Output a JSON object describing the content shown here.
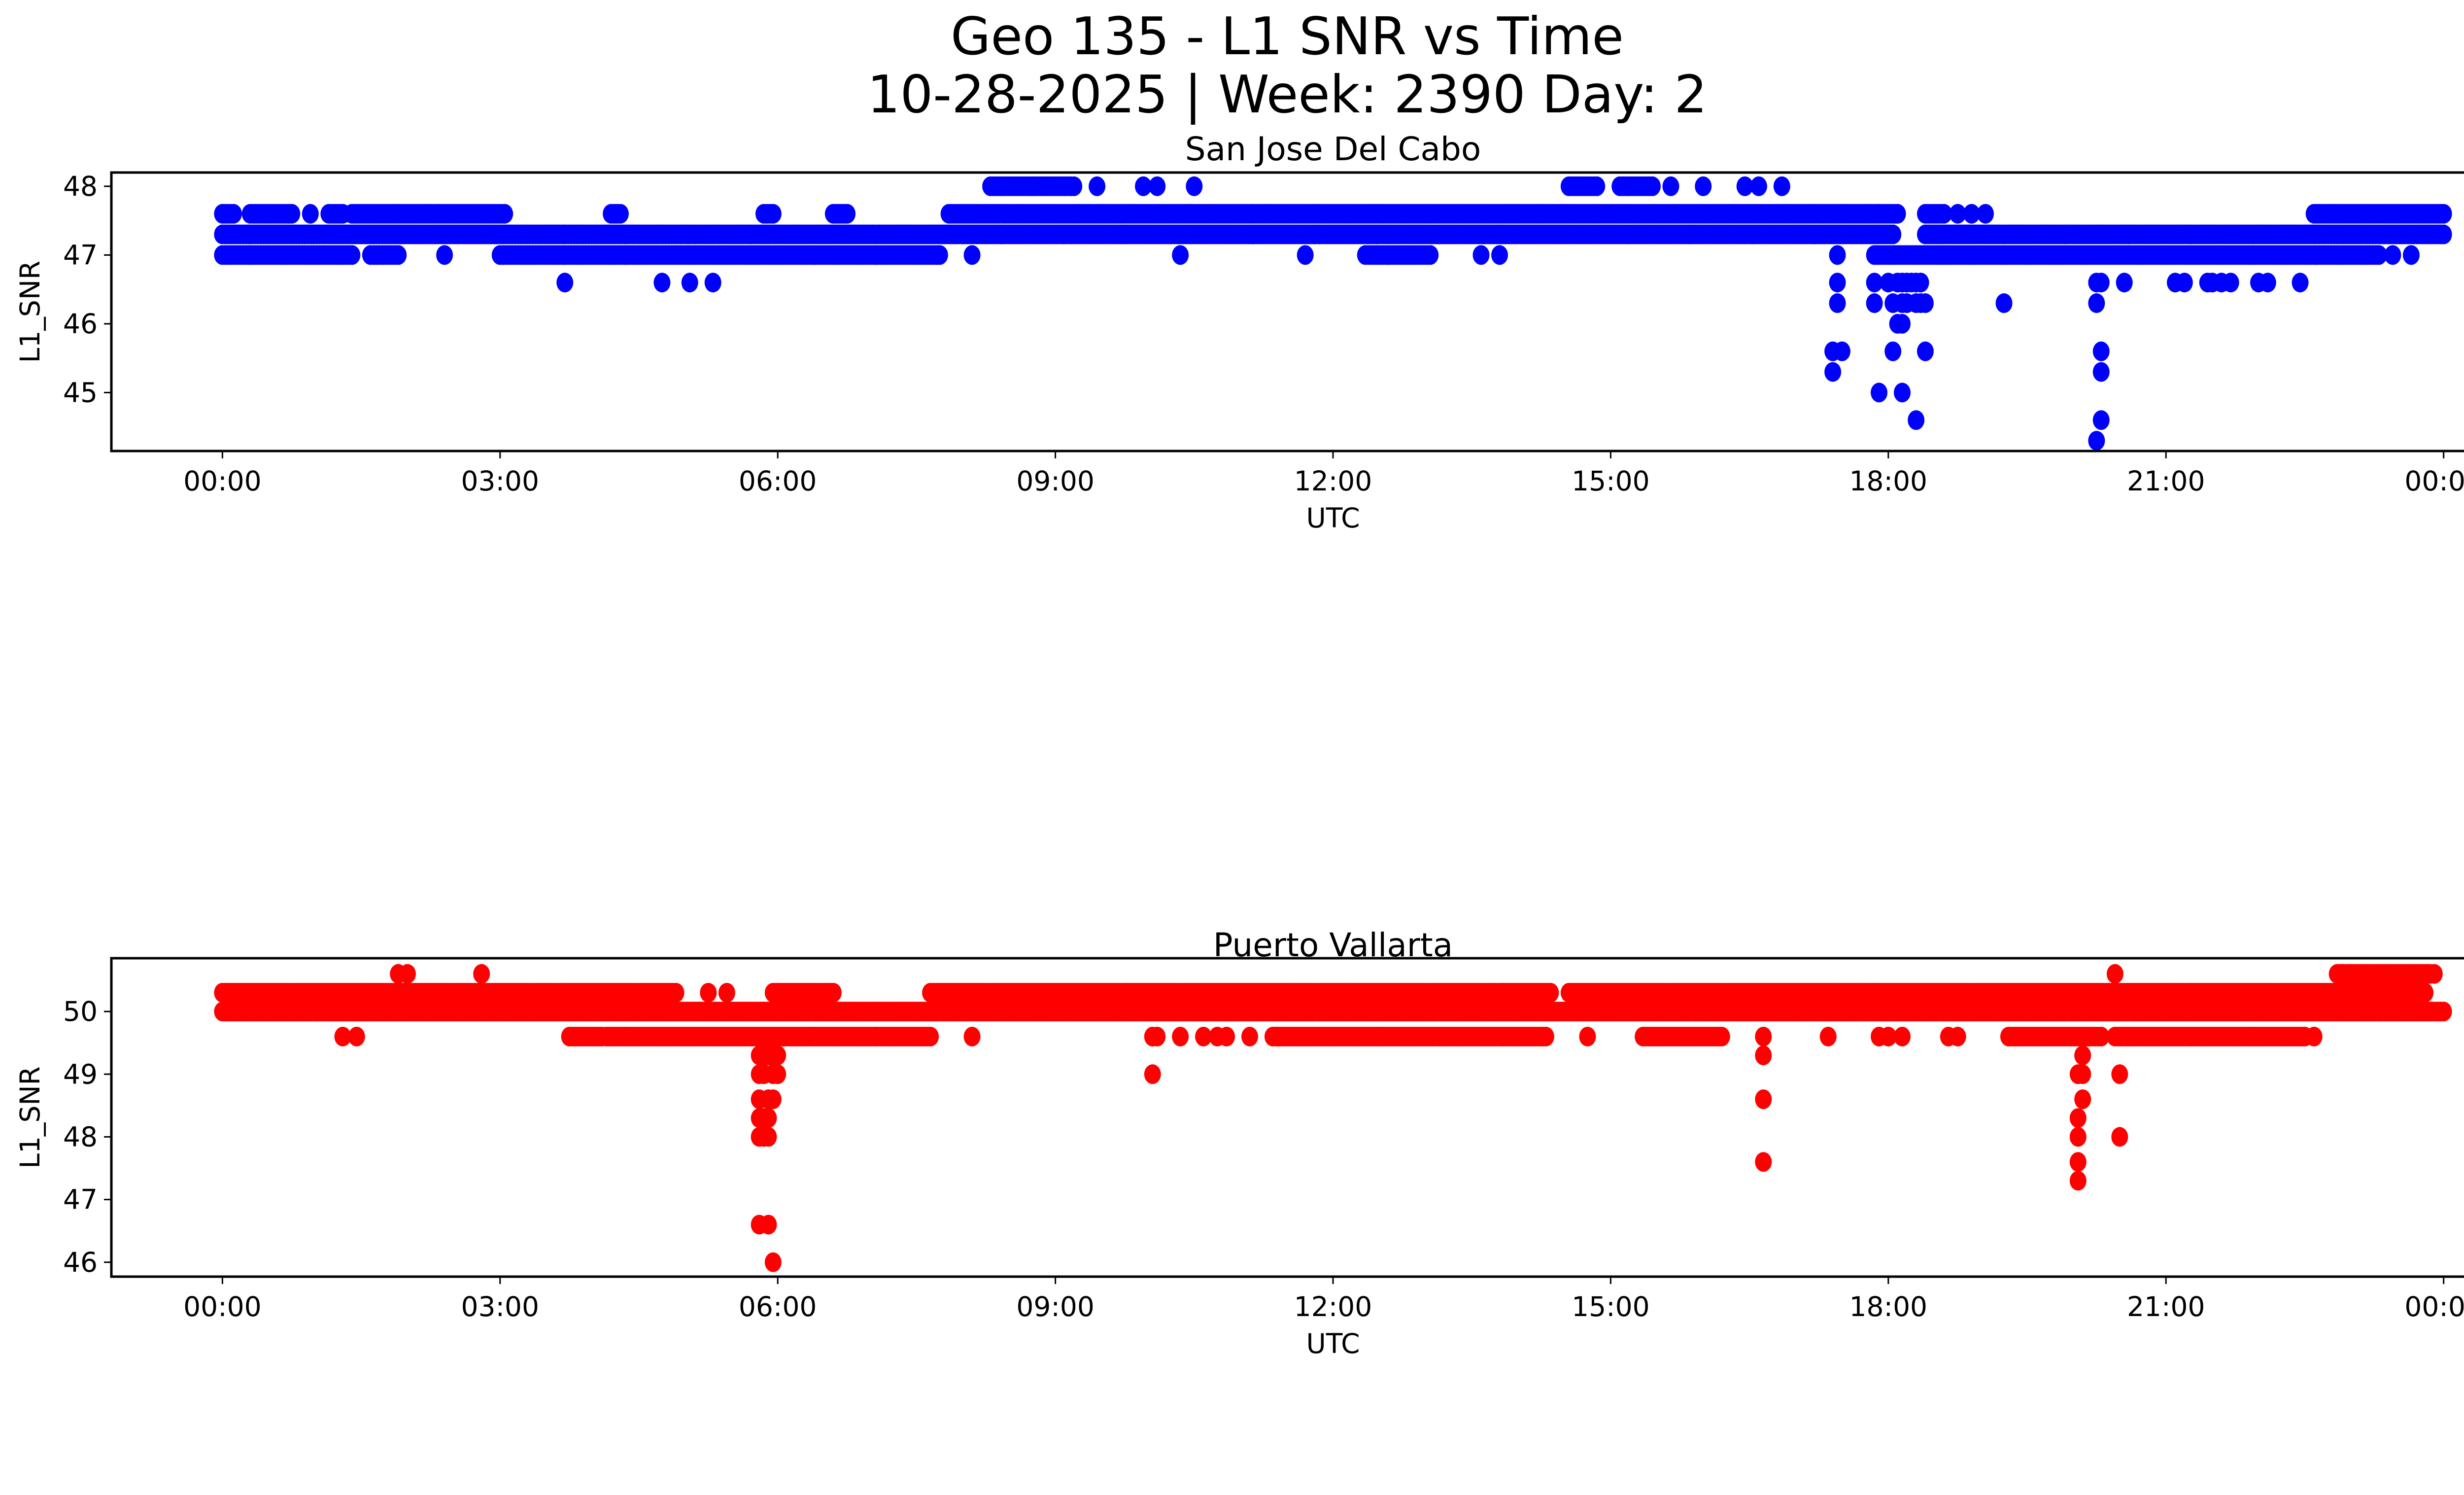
{
  "chart_data": {
    "type": "scatter",
    "title": "Geo 135 - L1 SNR vs Time",
    "subtitle": "10-28-2025 | Week: 2390 Day: 2",
    "x_tick_labels": [
      "00:00",
      "03:00",
      "06:00",
      "09:00",
      "12:00",
      "15:00",
      "18:00",
      "21:00",
      "00:00"
    ],
    "x_tick_hours": [
      0,
      3,
      6,
      9,
      12,
      15,
      18,
      21,
      24
    ],
    "panels": [
      {
        "name": "san-jose-del-cabo",
        "title": "San Jose Del Cabo",
        "xlabel": "UTC",
        "ylabel": "L1_SNR",
        "color": "#0000ff",
        "xlim_hours": [
          -1.2,
          25.2
        ],
        "ylim": [
          44.15,
          48.2
        ],
        "y_ticks": [
          45,
          46,
          47,
          48
        ],
        "y_tick_labels": [
          "45",
          "46",
          "47",
          "48"
        ],
        "runs": [
          {
            "y": 47.3,
            "from": 0.0,
            "to": 18.05
          },
          {
            "y": 47.3,
            "from": 18.4,
            "to": 24.0
          },
          {
            "y": 47.6,
            "from": 0.0,
            "to": 0.12
          },
          {
            "y": 47.6,
            "from": 0.3,
            "to": 0.75
          },
          {
            "y": 47.6,
            "from": 1.15,
            "to": 1.3
          },
          {
            "y": 47.6,
            "from": 1.4,
            "to": 3.05
          },
          {
            "y": 47.6,
            "from": 4.2,
            "to": 4.3
          },
          {
            "y": 47.6,
            "from": 5.85,
            "to": 5.95
          },
          {
            "y": 47.6,
            "from": 6.6,
            "to": 6.75
          },
          {
            "y": 47.6,
            "from": 7.85,
            "to": 18.1
          },
          {
            "y": 47.6,
            "from": 18.4,
            "to": 18.6
          },
          {
            "y": 47.6,
            "from": 22.6,
            "to": 24.0
          },
          {
            "y": 47.0,
            "from": 0.0,
            "to": 1.4
          },
          {
            "y": 47.0,
            "from": 1.6,
            "to": 1.9
          },
          {
            "y": 47.0,
            "from": 3.0,
            "to": 7.75
          },
          {
            "y": 47.0,
            "from": 12.35,
            "to": 13.05
          },
          {
            "y": 47.0,
            "from": 17.85,
            "to": 23.3
          },
          {
            "y": 48.0,
            "from": 8.3,
            "to": 8.75
          },
          {
            "y": 48.0,
            "from": 8.75,
            "to": 9.2
          },
          {
            "y": 48.0,
            "from": 14.55,
            "to": 14.85
          },
          {
            "y": 48.0,
            "from": 15.1,
            "to": 15.45
          }
        ],
        "points": [
          [
            0.95,
            47.6
          ],
          [
            2.4,
            47.0
          ],
          [
            8.1,
            47.0
          ],
          [
            10.35,
            47.0
          ],
          [
            11.7,
            47.0
          ],
          [
            12.6,
            47.0
          ],
          [
            13.6,
            47.0
          ],
          [
            13.8,
            47.0
          ],
          [
            3.7,
            46.6
          ],
          [
            4.75,
            46.6
          ],
          [
            5.05,
            46.6
          ],
          [
            5.3,
            46.6
          ],
          [
            9.45,
            48.0
          ],
          [
            9.95,
            48.0
          ],
          [
            10.1,
            48.0
          ],
          [
            10.5,
            48.0
          ],
          [
            15.65,
            48.0
          ],
          [
            16.0,
            48.0
          ],
          [
            16.45,
            48.0
          ],
          [
            16.6,
            48.0
          ],
          [
            16.85,
            48.0
          ],
          [
            18.75,
            47.6
          ],
          [
            18.9,
            47.6
          ],
          [
            19.05,
            47.6
          ],
          [
            23.45,
            47.0
          ],
          [
            23.65,
            47.0
          ],
          [
            17.45,
            47.0
          ],
          [
            17.45,
            46.6
          ],
          [
            17.45,
            46.3
          ],
          [
            17.4,
            45.6
          ],
          [
            17.5,
            45.6
          ],
          [
            17.4,
            45.3
          ],
          [
            17.85,
            46.6
          ],
          [
            17.85,
            46.3
          ],
          [
            17.9,
            45.0
          ],
          [
            18.0,
            46.6
          ],
          [
            18.1,
            46.6
          ],
          [
            18.15,
            46.6
          ],
          [
            18.2,
            46.6
          ],
          [
            18.25,
            46.6
          ],
          [
            18.3,
            46.6
          ],
          [
            18.35,
            46.6
          ],
          [
            18.05,
            46.3
          ],
          [
            18.15,
            46.3
          ],
          [
            18.2,
            46.3
          ],
          [
            18.3,
            46.3
          ],
          [
            18.35,
            46.3
          ],
          [
            18.4,
            46.3
          ],
          [
            18.1,
            46.0
          ],
          [
            18.15,
            46.0
          ],
          [
            18.05,
            45.6
          ],
          [
            18.4,
            45.6
          ],
          [
            18.15,
            45.0
          ],
          [
            18.3,
            44.6
          ],
          [
            19.25,
            46.3
          ],
          [
            20.25,
            46.6
          ],
          [
            20.3,
            46.6
          ],
          [
            20.25,
            46.3
          ],
          [
            20.3,
            45.6
          ],
          [
            20.3,
            45.3
          ],
          [
            20.3,
            44.6
          ],
          [
            20.25,
            44.3
          ],
          [
            20.55,
            46.6
          ],
          [
            21.1,
            46.6
          ],
          [
            21.2,
            46.6
          ],
          [
            21.45,
            46.6
          ],
          [
            21.5,
            46.6
          ],
          [
            21.6,
            46.6
          ],
          [
            21.7,
            46.6
          ],
          [
            22.0,
            46.6
          ],
          [
            22.1,
            46.6
          ],
          [
            22.45,
            46.6
          ]
        ]
      },
      {
        "name": "puerto-vallarta",
        "title": "Puerto Vallarta",
        "xlabel": "UTC",
        "ylabel": "L1_SNR",
        "color": "#ff0000",
        "xlim_hours": [
          -1.2,
          25.2
        ],
        "ylim": [
          45.77,
          50.85
        ],
        "y_ticks": [
          46,
          47,
          48,
          49,
          50
        ],
        "y_tick_labels": [
          "46",
          "47",
          "48",
          "49",
          "50"
        ],
        "runs": [
          {
            "y": 50.0,
            "from": 0.0,
            "to": 24.0
          },
          {
            "y": 50.3,
            "from": 0.0,
            "to": 4.9
          },
          {
            "y": 50.3,
            "from": 5.95,
            "to": 6.6
          },
          {
            "y": 50.3,
            "from": 7.65,
            "to": 14.35
          },
          {
            "y": 50.3,
            "from": 14.55,
            "to": 23.8
          },
          {
            "y": 49.6,
            "from": 4.15,
            "to": 7.65
          },
          {
            "y": 49.6,
            "from": 3.75,
            "to": 4.1
          },
          {
            "y": 49.6,
            "from": 11.35,
            "to": 14.3
          },
          {
            "y": 49.6,
            "from": 15.35,
            "to": 16.2
          },
          {
            "y": 49.6,
            "from": 19.3,
            "to": 20.3
          },
          {
            "y": 49.6,
            "from": 20.45,
            "to": 22.5
          },
          {
            "y": 50.6,
            "from": 22.85,
            "to": 23.85
          }
        ],
        "points": [
          [
            1.3,
            49.6
          ],
          [
            1.45,
            49.6
          ],
          [
            1.9,
            50.6
          ],
          [
            2.0,
            50.6
          ],
          [
            2.8,
            50.6
          ],
          [
            5.25,
            50.3
          ],
          [
            5.45,
            50.3
          ],
          [
            5.8,
            49.3
          ],
          [
            5.85,
            49.3
          ],
          [
            5.9,
            49.3
          ],
          [
            5.95,
            49.3
          ],
          [
            6.0,
            49.3
          ],
          [
            5.8,
            49.0
          ],
          [
            5.85,
            49.0
          ],
          [
            5.95,
            49.0
          ],
          [
            6.0,
            49.0
          ],
          [
            5.8,
            48.6
          ],
          [
            5.9,
            48.6
          ],
          [
            5.95,
            48.6
          ],
          [
            5.8,
            48.3
          ],
          [
            5.85,
            48.3
          ],
          [
            5.9,
            48.3
          ],
          [
            5.8,
            48.0
          ],
          [
            5.85,
            48.0
          ],
          [
            5.9,
            48.0
          ],
          [
            5.8,
            46.6
          ],
          [
            5.9,
            46.6
          ],
          [
            5.95,
            46.0
          ],
          [
            8.1,
            49.6
          ],
          [
            10.05,
            49.6
          ],
          [
            10.1,
            49.6
          ],
          [
            10.35,
            49.6
          ],
          [
            10.6,
            49.6
          ],
          [
            10.75,
            49.6
          ],
          [
            10.85,
            49.6
          ],
          [
            10.05,
            49.0
          ],
          [
            11.1,
            49.6
          ],
          [
            11.4,
            49.6
          ],
          [
            14.75,
            49.6
          ],
          [
            16.65,
            49.6
          ],
          [
            16.65,
            49.3
          ],
          [
            16.65,
            48.6
          ],
          [
            16.65,
            47.6
          ],
          [
            17.35,
            49.6
          ],
          [
            17.9,
            49.6
          ],
          [
            18.0,
            49.6
          ],
          [
            18.15,
            49.6
          ],
          [
            18.65,
            49.6
          ],
          [
            18.75,
            49.6
          ],
          [
            20.1,
            49.3
          ],
          [
            20.05,
            49.0
          ],
          [
            20.1,
            49.0
          ],
          [
            20.1,
            48.6
          ],
          [
            20.05,
            48.3
          ],
          [
            20.05,
            48.0
          ],
          [
            20.05,
            47.6
          ],
          [
            20.05,
            47.3
          ],
          [
            20.5,
            49.0
          ],
          [
            20.5,
            48.0
          ],
          [
            20.45,
            50.6
          ],
          [
            22.6,
            49.6
          ],
          [
            22.9,
            50.6
          ],
          [
            23.0,
            50.6
          ],
          [
            23.9,
            50.6
          ]
        ]
      }
    ]
  }
}
